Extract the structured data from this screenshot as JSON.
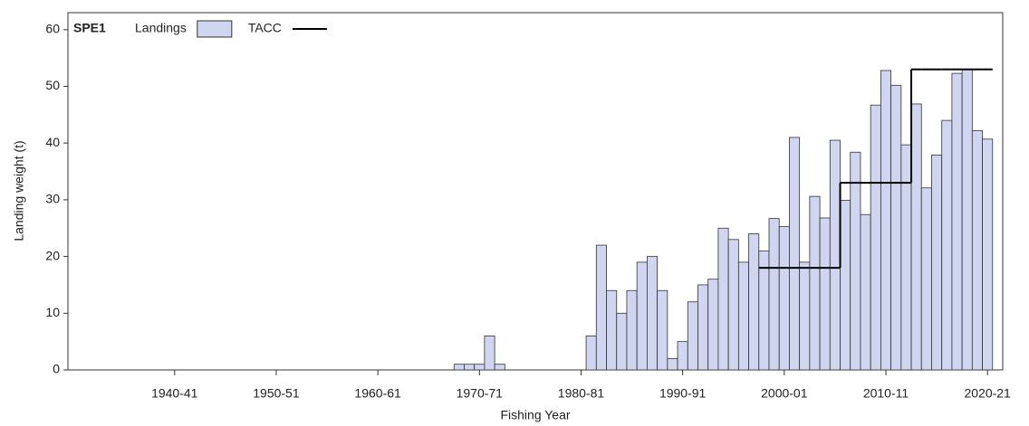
{
  "chart_data": {
    "type": "bar",
    "legend_title": "SPE1",
    "legend": "top-left",
    "x_label": "Fishing Year",
    "y_label": "Landing weight (t)",
    "xlim": [
      1929.5,
      2021.5
    ],
    "xticks": [
      {
        "value": 1940,
        "label": "1940-41"
      },
      {
        "value": 1950,
        "label": "1950-51"
      },
      {
        "value": 1960,
        "label": "1960-61"
      },
      {
        "value": 1970,
        "label": "1970-71"
      },
      {
        "value": 1980,
        "label": "1980-81"
      },
      {
        "value": 1990,
        "label": "1990-91"
      },
      {
        "value": 2000,
        "label": "2000-01"
      },
      {
        "value": 2010,
        "label": "2010-11"
      },
      {
        "value": 2020,
        "label": "2020-21"
      }
    ],
    "ylim": [
      0,
      63
    ],
    "yticks": [
      0,
      10,
      20,
      30,
      40,
      50,
      60
    ],
    "series": [
      {
        "name": "Landings",
        "type": "bar",
        "color": "#d0d6ef",
        "x": [
          1968,
          1969,
          1970,
          1971,
          1972,
          1981,
          1982,
          1983,
          1984,
          1985,
          1986,
          1987,
          1988,
          1989,
          1990,
          1991,
          1992,
          1993,
          1994,
          1995,
          1996,
          1997,
          1998,
          1999,
          2000,
          2001,
          2002,
          2003,
          2004,
          2005,
          2006,
          2007,
          2008,
          2009,
          2010,
          2011,
          2012,
          2013,
          2014,
          2015,
          2016,
          2017,
          2018,
          2019,
          2020
        ],
        "values": [
          1,
          1,
          1,
          6,
          1,
          6,
          22,
          14,
          10,
          14,
          19,
          20,
          14,
          2,
          5,
          12,
          15,
          16,
          25,
          23,
          19,
          24,
          21,
          26.7,
          25.3,
          41,
          19,
          30.6,
          26.8,
          40.5,
          29.9,
          38.4,
          27.4,
          46.7,
          52.8,
          50.2,
          39.7,
          46.9,
          32.1,
          37.9,
          44,
          52.3,
          53,
          42.2,
          40.7
        ]
      },
      {
        "name": "TACC",
        "type": "step",
        "color": "#000000",
        "x": [
          1998,
          1999,
          2000,
          2001,
          2002,
          2003,
          2004,
          2005,
          2006,
          2007,
          2008,
          2009,
          2010,
          2011,
          2012,
          2013,
          2014,
          2015,
          2016,
          2017,
          2018,
          2019,
          2020
        ],
        "values": [
          18,
          18,
          18,
          18,
          18,
          18,
          18,
          18,
          33,
          33,
          33,
          33,
          33,
          33,
          33,
          53,
          53,
          53,
          53,
          53,
          53,
          53,
          53
        ]
      }
    ]
  }
}
